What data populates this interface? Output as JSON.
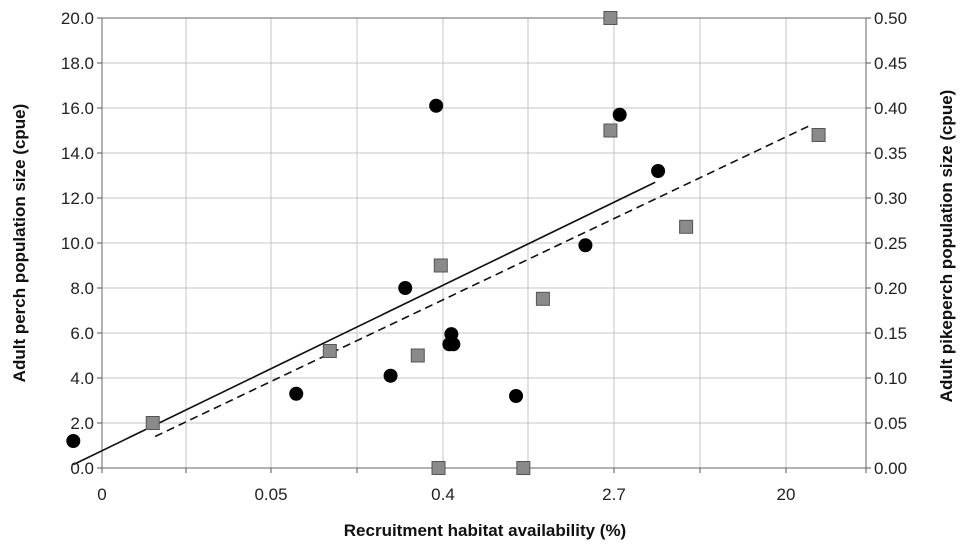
{
  "chart_data": {
    "type": "scatter",
    "xlabel": "Recruitment habitat availability (%)",
    "ylabel_left": "Adult perch population size (cpue)",
    "ylabel_right": "Adult pikeperch population size (cpue)",
    "x_scale": "log",
    "x_ticks": [
      "0",
      "0.05",
      "0.4",
      "2.7",
      "20"
    ],
    "y_left_ticks": [
      "0.0",
      "2.0",
      "4.0",
      "6.0",
      "8.0",
      "10.0",
      "12.0",
      "14.0",
      "16.0",
      "18.0",
      "20.0"
    ],
    "y_right_ticks": [
      "0.00",
      "0.05",
      "0.10",
      "0.15",
      "0.20",
      "0.25",
      "0.30",
      "0.35",
      "0.40",
      "0.45",
      "0.50"
    ],
    "ylim_left": [
      0,
      20
    ],
    "ylim_right": [
      0,
      0.5
    ],
    "grid": true,
    "series": [
      {
        "marker": "circle",
        "color": "#000000",
        "y_axis": "left",
        "points": [
          {
            "x": 0.0059,
            "y": 1.2
          },
          {
            "x": 0.075,
            "y": 3.3
          },
          {
            "x": 0.22,
            "y": 4.1
          },
          {
            "x": 0.26,
            "y": 8.0
          },
          {
            "x": 0.37,
            "y": 16.1
          },
          {
            "x": 0.43,
            "y": 5.5
          },
          {
            "x": 0.45,
            "y": 5.5
          },
          {
            "x": 0.44,
            "y": 5.95
          },
          {
            "x": 0.92,
            "y": 3.2
          },
          {
            "x": 2.03,
            "y": 9.9
          },
          {
            "x": 3.0,
            "y": 15.7
          },
          {
            "x": 4.65,
            "y": 13.2
          }
        ],
        "fit_line": {
          "style": "solid",
          "from": {
            "x": 0.0059,
            "y": 0.15
          },
          "to": {
            "x": 4.5,
            "y": 12.7
          }
        }
      },
      {
        "marker": "square",
        "color": "#8a8a8a",
        "y_axis": "right",
        "points": [
          {
            "x": 0.0146,
            "y": 0.05
          },
          {
            "x": 0.11,
            "y": 0.13
          },
          {
            "x": 0.3,
            "y": 0.125
          },
          {
            "x": 0.38,
            "y": 0.0
          },
          {
            "x": 0.39,
            "y": 0.225
          },
          {
            "x": 1.0,
            "y": 0.0
          },
          {
            "x": 1.25,
            "y": 0.188
          },
          {
            "x": 2.7,
            "y": 0.375
          },
          {
            "x": 2.7,
            "y": 0.5
          },
          {
            "x": 6.4,
            "y": 0.268
          },
          {
            "x": 29,
            "y": 0.37
          }
        ],
        "fit_line": {
          "style": "dashed",
          "from": {
            "x": 0.015,
            "y": 0.035
          },
          "to": {
            "x": 26,
            "y": 0.38
          }
        }
      }
    ]
  }
}
